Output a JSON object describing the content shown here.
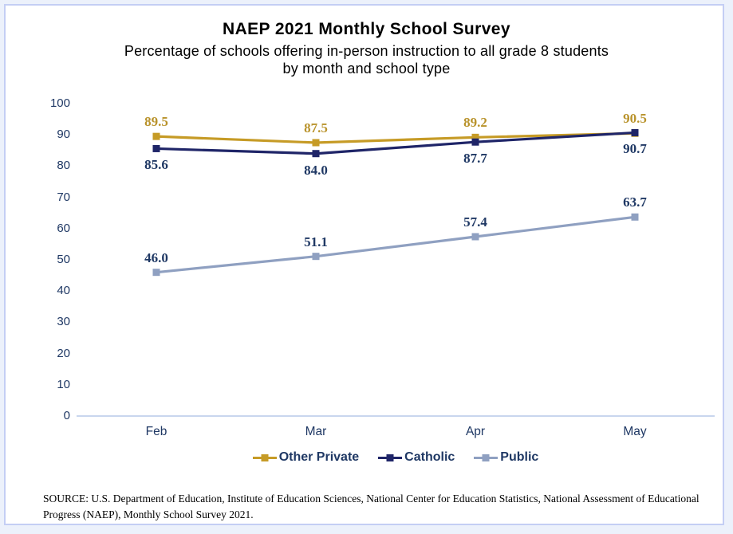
{
  "title": "NAEP 2021 Monthly School Survey",
  "subtitle": [
    "Percentage of schools offering in-person instruction to all grade 8 students",
    "by month and school type"
  ],
  "source": "SOURCE: U.S. Department of Education, Institute of Education Sciences, National Center for Education Statistics, National Assessment of Educational Progress (NAEP), Monthly School Survey 2021.",
  "colors": {
    "page_background": "#ECF1FB",
    "panel_border": "#C4CEF4",
    "axis_line": "#B7C9E9",
    "axis_text": "#1F3864",
    "legend_text": "#1F3864"
  },
  "chart_data": {
    "type": "line",
    "title": "NAEP 2021 Monthly School Survey",
    "categories": [
      "Feb",
      "Mar",
      "Apr",
      "May"
    ],
    "series": [
      {
        "name": "Other Private",
        "color": "#C69B26",
        "label_color": "#B9932C",
        "values": [
          89.5,
          87.5,
          89.2,
          90.5
        ],
        "label_position": "above"
      },
      {
        "name": "Catholic",
        "color": "#1F2568",
        "label_color": "#1F3864",
        "values": [
          85.6,
          84.0,
          87.7,
          90.7
        ],
        "label_position": "below"
      },
      {
        "name": "Public",
        "color": "#8FA0C1",
        "label_color": "#1F3864",
        "values": [
          46.0,
          51.1,
          57.4,
          63.7
        ],
        "label_position": "above"
      }
    ],
    "ylim": [
      0,
      100
    ],
    "ytick_step": 10,
    "xlabel": "",
    "ylabel": "",
    "grid": false,
    "marker": "square",
    "legend_position": "bottom"
  }
}
